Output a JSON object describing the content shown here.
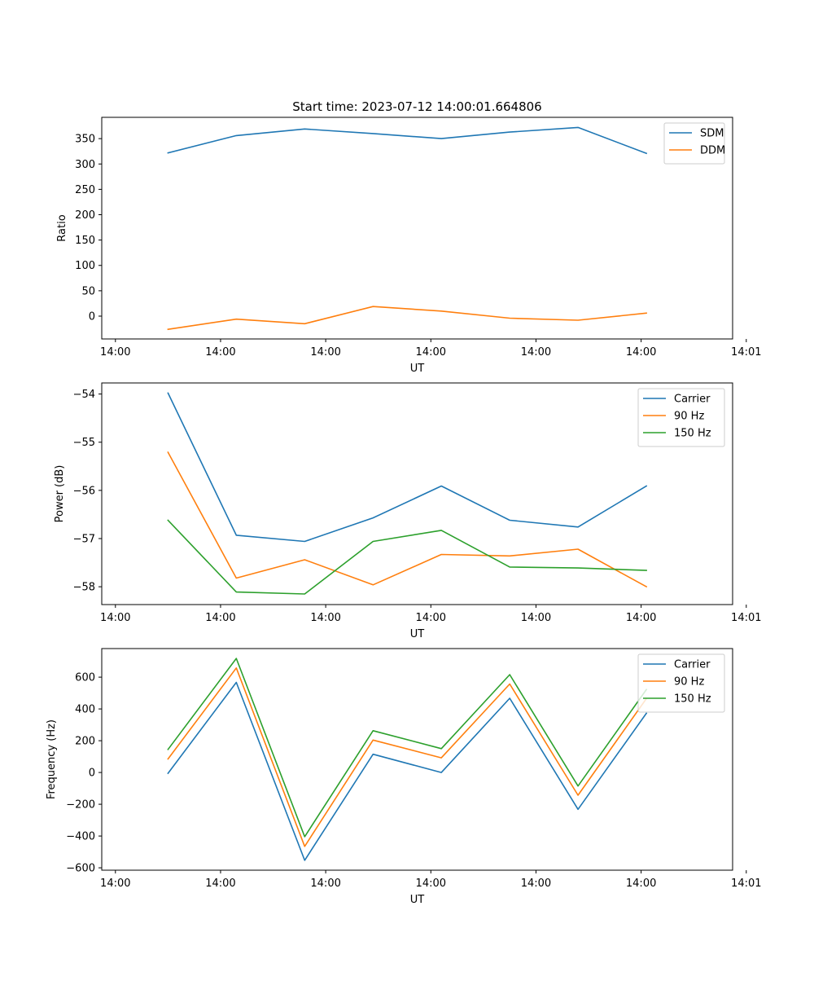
{
  "figure_title": "Start time: 2023-07-12 14:00:01.664806",
  "colors": {
    "blue": "#1f77b4",
    "orange": "#ff7f0e",
    "green": "#2ca02c"
  },
  "chart_data": [
    {
      "type": "line",
      "title": "Start time: 2023-07-12 14:00:01.664806",
      "xlabel": "UT",
      "ylabel": "Ratio",
      "xlim": [
        -0.78,
        5.22
      ],
      "ylim": [
        -45,
        392
      ],
      "x": [
        -0.15,
        0.5,
        1.15,
        1.8,
        2.45,
        3.1,
        3.75,
        4.4
      ],
      "xticks": [
        {
          "value": -0.65,
          "label": "14:00"
        },
        {
          "value": 0.35,
          "label": "14:00"
        },
        {
          "value": 1.35,
          "label": "14:00"
        },
        {
          "value": 2.35,
          "label": "14:00"
        },
        {
          "value": 3.35,
          "label": "14:00"
        },
        {
          "value": 4.35,
          "label": "14:00"
        },
        {
          "value": 5.35,
          "label": "14:01"
        }
      ],
      "yticks": [
        {
          "value": 0,
          "label": "0"
        },
        {
          "value": 50,
          "label": "50"
        },
        {
          "value": 100,
          "label": "100"
        },
        {
          "value": 150,
          "label": "150"
        },
        {
          "value": 200,
          "label": "200"
        },
        {
          "value": 250,
          "label": "250"
        },
        {
          "value": 300,
          "label": "300"
        },
        {
          "value": 350,
          "label": "350"
        }
      ],
      "legend_position": "top-right",
      "series": [
        {
          "name": "SDM",
          "color": "#1f77b4",
          "values": [
            322,
            356,
            369,
            360,
            350,
            363,
            372,
            321
          ]
        },
        {
          "name": "DDM",
          "color": "#ff7f0e",
          "values": [
            -26,
            -6,
            -15,
            19,
            10,
            -4,
            -8,
            6
          ]
        }
      ]
    },
    {
      "type": "line",
      "title": "",
      "xlabel": "UT",
      "ylabel": "Power (dB)",
      "xlim": [
        -0.78,
        5.22
      ],
      "ylim": [
        -58.37,
        -53.77
      ],
      "x": [
        -0.15,
        0.5,
        1.15,
        1.8,
        2.45,
        3.1,
        3.75,
        4.4
      ],
      "xticks": [
        {
          "value": -0.65,
          "label": "14:00"
        },
        {
          "value": 0.35,
          "label": "14:00"
        },
        {
          "value": 1.35,
          "label": "14:00"
        },
        {
          "value": 2.35,
          "label": "14:00"
        },
        {
          "value": 3.35,
          "label": "14:00"
        },
        {
          "value": 4.35,
          "label": "14:00"
        },
        {
          "value": 5.35,
          "label": "14:01"
        }
      ],
      "yticks": [
        {
          "value": -58,
          "label": "−58"
        },
        {
          "value": -57,
          "label": "−57"
        },
        {
          "value": -56,
          "label": "−56"
        },
        {
          "value": -55,
          "label": "−55"
        },
        {
          "value": -54,
          "label": "−54"
        }
      ],
      "legend_position": "top-right",
      "series": [
        {
          "name": "Carrier",
          "color": "#1f77b4",
          "values": [
            -53.98,
            -56.93,
            -57.06,
            -56.57,
            -55.91,
            -56.62,
            -56.76,
            -55.91
          ]
        },
        {
          "name": "90 Hz",
          "color": "#ff7f0e",
          "values": [
            -55.21,
            -57.82,
            -57.44,
            -57.96,
            -57.33,
            -57.36,
            -57.22,
            -58.0
          ]
        },
        {
          "name": "150 Hz",
          "color": "#2ca02c",
          "values": [
            -56.62,
            -58.11,
            -58.15,
            -57.06,
            -56.83,
            -57.59,
            -57.61,
            -57.66
          ]
        }
      ]
    },
    {
      "type": "line",
      "title": "",
      "xlabel": "UT",
      "ylabel": "Frequency (Hz)",
      "xlim": [
        -0.78,
        5.22
      ],
      "ylim": [
        -615,
        780
      ],
      "x": [
        -0.15,
        0.5,
        1.15,
        1.8,
        2.45,
        3.1,
        3.75,
        4.4
      ],
      "xticks": [
        {
          "value": -0.65,
          "label": "14:00"
        },
        {
          "value": 0.35,
          "label": "14:00"
        },
        {
          "value": 1.35,
          "label": "14:00"
        },
        {
          "value": 2.35,
          "label": "14:00"
        },
        {
          "value": 3.35,
          "label": "14:00"
        },
        {
          "value": 4.35,
          "label": "14:00"
        },
        {
          "value": 5.35,
          "label": "14:01"
        }
      ],
      "yticks": [
        {
          "value": -600,
          "label": "−600"
        },
        {
          "value": -400,
          "label": "−400"
        },
        {
          "value": -200,
          "label": "−200"
        },
        {
          "value": 0,
          "label": "0"
        },
        {
          "value": 200,
          "label": "200"
        },
        {
          "value": 400,
          "label": "400"
        },
        {
          "value": 600,
          "label": "600"
        }
      ],
      "legend_position": "top-right",
      "series": [
        {
          "name": "Carrier",
          "color": "#1f77b4",
          "values": [
            -5,
            567,
            -553,
            115,
            0,
            467,
            -232,
            373
          ]
        },
        {
          "name": "90 Hz",
          "color": "#ff7f0e",
          "values": [
            85,
            658,
            -465,
            204,
            92,
            557,
            -143,
            465
          ]
        },
        {
          "name": "150 Hz",
          "color": "#2ca02c",
          "values": [
            145,
            718,
            -404,
            263,
            150,
            616,
            -85,
            522
          ]
        }
      ]
    }
  ]
}
